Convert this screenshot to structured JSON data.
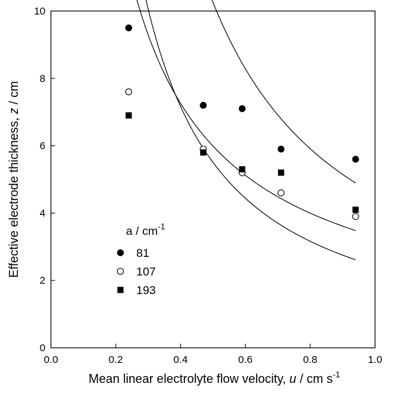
{
  "chart_data": {
    "type": "scatter",
    "xlabel": {
      "main": "Mean linear electrolyte flow velocity, ",
      "var": "u",
      "unit": " / cm s",
      "sup": "-1"
    },
    "ylabel": {
      "main": "Effective electrode thickness, ",
      "var": "z",
      "unit": " / cm"
    },
    "xlim": [
      0.0,
      1.0
    ],
    "ylim": [
      0,
      10
    ],
    "xticks": [
      0.0,
      0.2,
      0.4,
      0.6,
      0.8,
      1.0
    ],
    "xtick_labels": [
      "0.0",
      "0.2",
      "0.4",
      "0.6",
      "0.8",
      "1.0"
    ],
    "yticks": [
      0,
      2,
      4,
      6,
      8,
      10
    ],
    "ytick_labels": [
      "0",
      "2",
      "4",
      "6",
      "8",
      "10"
    ],
    "grid": false,
    "legend": {
      "title": "a / cm",
      "title_sup": "-1",
      "placement": "lower-left"
    },
    "series": [
      {
        "name": "81",
        "marker": "filled-circle",
        "x": [
          0.24,
          0.47,
          0.59,
          0.71,
          0.94
        ],
        "y": [
          9.5,
          7.2,
          7.1,
          5.9,
          5.6
        ],
        "fit": {
          "a": 4.55,
          "b": 1.173
        }
      },
      {
        "name": "107",
        "marker": "open-circle",
        "x": [
          0.24,
          0.47,
          0.59,
          0.71,
          0.94
        ],
        "y": [
          7.6,
          5.9,
          5.2,
          4.6,
          3.9
        ],
        "fit": {
          "a": 2.43,
          "b": 1.18
        }
      },
      {
        "name": "193",
        "marker": "filled-square",
        "x": [
          0.24,
          0.47,
          0.59,
          0.71,
          0.94
        ],
        "y": [
          6.9,
          5.8,
          5.3,
          5.2,
          4.1
        ],
        "fit": {
          "a": 3.3,
          "b": 0.86
        }
      }
    ]
  }
}
